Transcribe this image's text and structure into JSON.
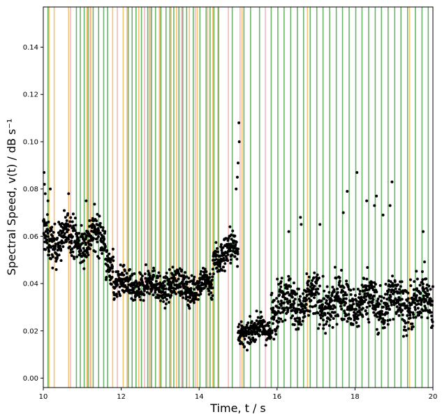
{
  "chart_data": {
    "type": "scatter",
    "xlabel": "Time, t / s",
    "ylabel": "Spectral Speed, v(t) / dB s⁻¹",
    "xlim": [
      10,
      20
    ],
    "ylim": [
      -0.004,
      0.157
    ],
    "x_ticks": [
      10,
      12,
      14,
      16,
      18,
      20
    ],
    "x_tick_labels": [
      "10",
      "12",
      "14",
      "16",
      "18",
      "20"
    ],
    "y_ticks": [
      0.0,
      0.02,
      0.04,
      0.06,
      0.08,
      0.1,
      0.12,
      0.14
    ],
    "y_tick_labels": [
      "0.00",
      "0.02",
      "0.04",
      "0.06",
      "0.08",
      "0.10",
      "0.12",
      "0.14"
    ],
    "grid": false,
    "marker_color": "#000000",
    "line_colors": {
      "green": "#3a9a3a",
      "orange": "#f5b040",
      "pink": "#f0a0a8"
    },
    "vertical_lines": {
      "green": [
        10.12,
        10.85,
        10.95,
        11.05,
        11.15,
        11.28,
        11.42,
        11.55,
        11.65,
        12.18,
        12.28,
        12.38,
        12.52,
        12.68,
        12.78,
        12.88,
        13.02,
        13.15,
        13.25,
        13.35,
        13.48,
        13.58,
        13.68,
        13.85,
        14.02,
        14.18,
        14.28,
        14.38,
        14.5,
        14.85,
        15.15,
        15.32,
        15.55,
        15.85,
        16.02,
        16.18,
        16.35,
        16.52,
        16.68,
        16.85,
        17.02,
        17.18,
        17.35,
        17.52,
        17.68,
        17.85,
        18.02,
        18.18,
        18.35,
        18.52,
        18.68,
        18.85,
        19.02,
        19.18,
        19.35,
        19.55,
        19.72,
        19.88
      ],
      "orange": [
        10.15,
        10.28,
        10.65,
        11.12,
        11.22,
        11.78,
        12.05,
        12.15,
        12.45,
        12.72,
        12.98,
        13.28,
        13.42,
        13.75,
        13.95,
        14.22,
        14.35,
        14.48,
        15.1,
        16.78,
        19.4
      ],
      "pink": [
        10.7,
        11.2,
        11.9,
        12.6,
        12.75,
        13.0,
        13.55,
        13.9,
        14.75,
        15.05,
        15.7
      ]
    },
    "series": [
      {
        "segments": [
          {
            "x_range": [
              10.0,
              11.6
            ],
            "mean": 0.059,
            "spread": 0.007
          },
          {
            "x_range": [
              11.6,
              11.8
            ],
            "mean": 0.05,
            "spread": 0.006
          },
          {
            "x_range": [
              11.8,
              14.35
            ],
            "mean": 0.039,
            "spread": 0.005
          },
          {
            "x_range": [
              14.35,
              15.0
            ],
            "mean": 0.053,
            "spread": 0.006
          },
          {
            "x_range": [
              15.0,
              15.85
            ],
            "mean": 0.02,
            "spread": 0.004
          },
          {
            "x_range": [
              15.85,
              20.0
            ],
            "mean": 0.032,
            "spread": 0.008
          }
        ],
        "outliers": [
          [
            10.02,
            0.087
          ],
          [
            10.03,
            0.082
          ],
          [
            10.05,
            0.078
          ],
          [
            10.12,
            0.075
          ],
          [
            10.18,
            0.08
          ],
          [
            10.65,
            0.078
          ],
          [
            11.1,
            0.075
          ],
          [
            14.95,
            0.08
          ],
          [
            15.02,
            0.108
          ],
          [
            15.03,
            0.1
          ],
          [
            15.0,
            0.091
          ],
          [
            14.98,
            0.085
          ],
          [
            16.6,
            0.068
          ],
          [
            16.62,
            0.065
          ],
          [
            18.05,
            0.087
          ],
          [
            17.8,
            0.079
          ],
          [
            18.3,
            0.075
          ],
          [
            18.55,
            0.077
          ],
          [
            18.9,
            0.073
          ],
          [
            18.95,
            0.083
          ],
          [
            18.5,
            0.073
          ],
          [
            18.72,
            0.069
          ],
          [
            16.3,
            0.062
          ],
          [
            17.1,
            0.065
          ],
          [
            19.75,
            0.062
          ],
          [
            17.7,
            0.07
          ]
        ]
      }
    ]
  }
}
